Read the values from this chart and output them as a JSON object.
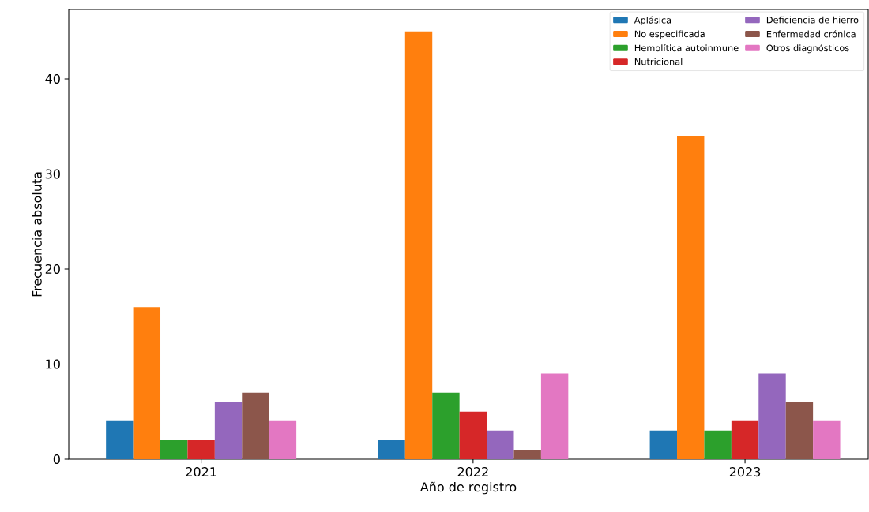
{
  "chart_data": {
    "type": "bar",
    "xlabel": "Año de registro",
    "ylabel": "Frecuencia absoluta",
    "categories": [
      "2021",
      "2022",
      "2023"
    ],
    "series": [
      {
        "name": "Aplásica",
        "color": "#1f77b4",
        "values": [
          4,
          2,
          3
        ]
      },
      {
        "name": "No especificada",
        "color": "#ff7f0e",
        "values": [
          16,
          45,
          34
        ]
      },
      {
        "name": "Hemolítica autoinmune",
        "color": "#2ca02c",
        "values": [
          2,
          7,
          3
        ]
      },
      {
        "name": "Nutricional",
        "color": "#d62728",
        "values": [
          2,
          5,
          4
        ]
      },
      {
        "name": "Deficiencia de hierro",
        "color": "#9467bd",
        "values": [
          6,
          3,
          9
        ]
      },
      {
        "name": "Enfermedad crónica",
        "color": "#8c564b",
        "values": [
          7,
          1,
          6
        ]
      },
      {
        "name": "Otros diagnósticos",
        "color": "#e377c2",
        "values": [
          4,
          9,
          4
        ]
      }
    ],
    "ylim": [
      0,
      47.3
    ],
    "yticks": [
      0,
      10,
      20,
      30,
      40
    ],
    "grid": false,
    "legend": "top right"
  }
}
